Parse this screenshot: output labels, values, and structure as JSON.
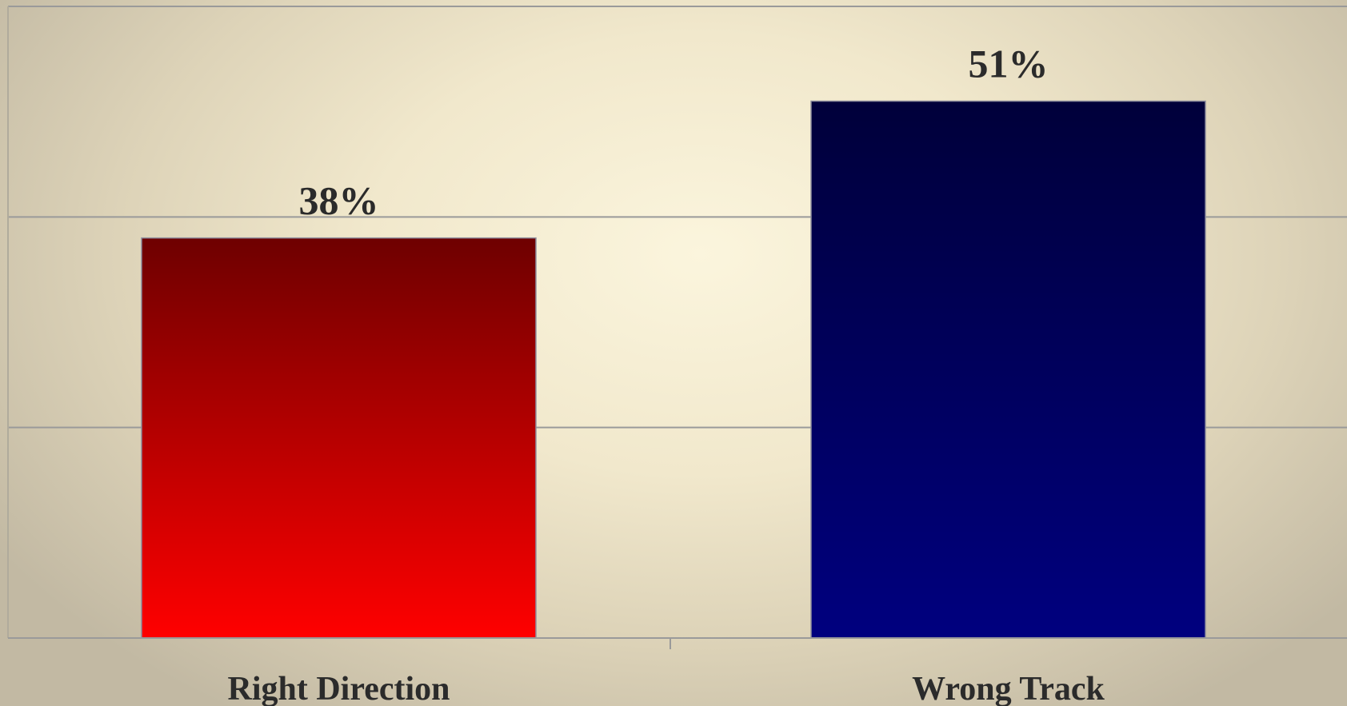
{
  "chart_data": {
    "type": "bar",
    "categories": [
      "Right Direction",
      "Wrong Track"
    ],
    "values": [
      38,
      51
    ],
    "value_labels": [
      "38%",
      "51%"
    ],
    "ylim": [
      0,
      60
    ],
    "grid": true,
    "colors": {
      "Right Direction": {
        "top": "#6e0000",
        "bottom": "#ff0000"
      },
      "Wrong Track": {
        "top": "#00003a",
        "bottom": "#00007f"
      }
    }
  }
}
